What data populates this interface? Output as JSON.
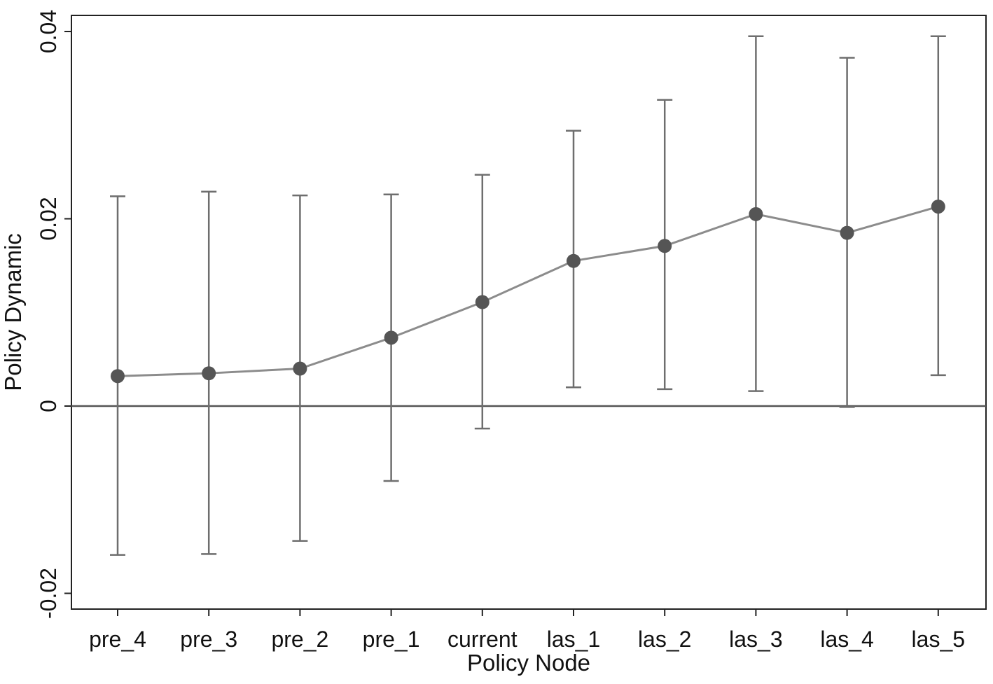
{
  "chart_data": {
    "type": "scatter",
    "title": "",
    "xlabel": "Policy Node",
    "ylabel": "Policy Dynamic",
    "categories": [
      "pre_4",
      "pre_3",
      "pre_2",
      "pre_1",
      "current",
      "las_1",
      "las_2",
      "las_3",
      "las_4",
      "las_5"
    ],
    "series": [
      {
        "values": [
          0.0032,
          0.0035,
          0.004,
          0.0073,
          0.0111,
          0.0155,
          0.0171,
          0.0205,
          0.0185,
          0.0213
        ],
        "ci_upper": [
          0.0224,
          0.0229,
          0.0225,
          0.0226,
          0.0247,
          0.0294,
          0.0327,
          0.0395,
          0.0372,
          0.0395
        ],
        "ci_lower": [
          -0.0159,
          -0.0158,
          -0.0144,
          -0.008,
          -0.0024,
          0.002,
          0.0018,
          0.0016,
          -0.0001,
          0.0033
        ]
      }
    ],
    "y_ticks": [
      "0.04",
      "0.02",
      "0",
      "-0.02"
    ],
    "y_tick_values": [
      0.04,
      0.02,
      0,
      -0.02
    ],
    "ylim": [
      -0.0222,
      0.0425
    ],
    "reference_line_y": 0,
    "grid": false,
    "legend": "none",
    "colors": {
      "marker": "#555555",
      "line": "#8c8c8c",
      "errorbar": "#6e6e6e",
      "axis": "#222222",
      "zero_line": "#555555"
    }
  }
}
